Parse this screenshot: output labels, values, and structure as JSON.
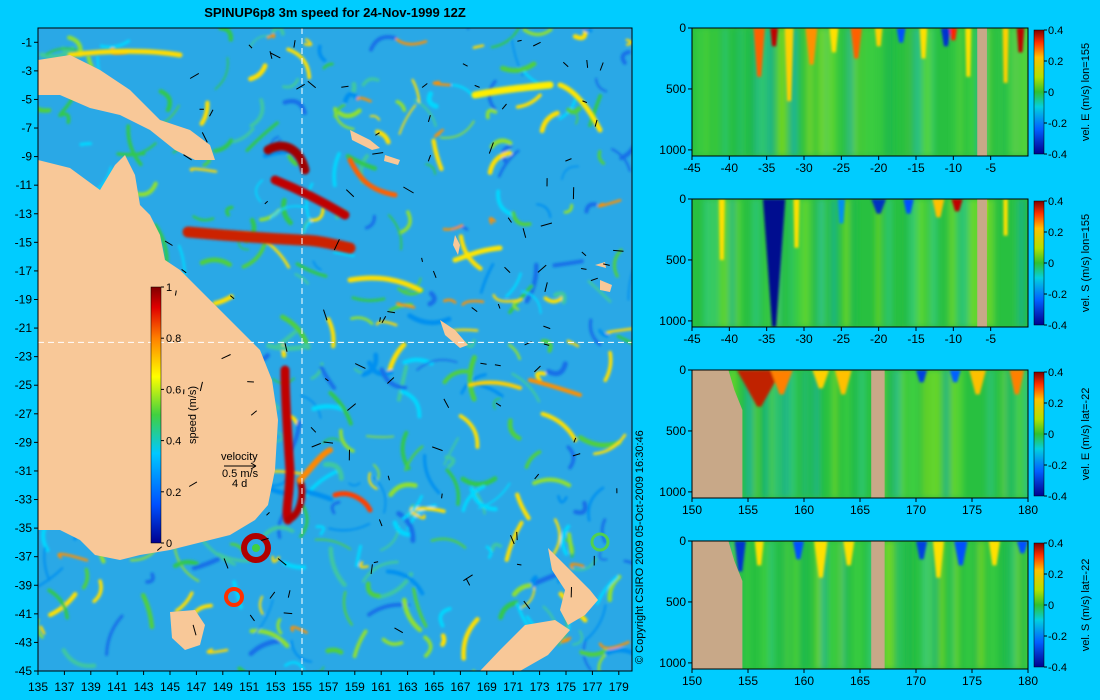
{
  "colors": {
    "background": "#00ccff",
    "land": "#f8c898",
    "section_land": "#c8a888",
    "ocean_base": "#2aa8e6"
  },
  "chart_data": [
    {
      "type": "heatmap",
      "title": "SPINUP6p8 3m speed for 24-Nov-1999 12Z",
      "x_ticks": [
        "135",
        "137",
        "139",
        "141",
        "143",
        "145",
        "147",
        "149",
        "151",
        "153",
        "155",
        "157",
        "159",
        "161",
        "163",
        "165",
        "167",
        "169",
        "171",
        "173",
        "175",
        "177",
        "179"
      ],
      "y_ticks": [
        "-1",
        "-3",
        "-5",
        "-7",
        "-9",
        "-11",
        "-13",
        "-15",
        "-17",
        "-19",
        "-21",
        "-23",
        "-25",
        "-27",
        "-29",
        "-31",
        "-33",
        "-35",
        "-37",
        "-39",
        "-41",
        "-43",
        "-45"
      ],
      "xlim": [
        135,
        180
      ],
      "ylim": [
        -45,
        0
      ],
      "crosshair": {
        "lon": 155,
        "lat": -22
      },
      "colorbar": {
        "label": "speed (m/s)",
        "ticks": [
          "1",
          "0.8",
          "0.6",
          "0.4",
          "0.2",
          "0"
        ],
        "range": [
          0,
          1
        ]
      },
      "velocity_key": {
        "line1": "velocity",
        "line2": "0.5 m/s",
        "line3": "4 d"
      },
      "copyright": "© Copyright CSIRO 2009   05-Oct-2009 16:30:46"
    },
    {
      "type": "heatmap",
      "xlim": [
        -45,
        0
      ],
      "ylim": [
        1050,
        0
      ],
      "x_ticks": [
        "-45",
        "-40",
        "-35",
        "-30",
        "-25",
        "-20",
        "-15",
        "-10",
        "-5"
      ],
      "y_ticks": [
        "0",
        "500",
        "1000"
      ],
      "colorbar": {
        "label": "vel. E (m/s) lon=155",
        "ticks": [
          "0.4",
          "0.2",
          "0",
          "-0.2",
          "-0.4"
        ],
        "range": [
          -0.4,
          0.4
        ]
      }
    },
    {
      "type": "heatmap",
      "xlim": [
        -45,
        0
      ],
      "ylim": [
        1050,
        0
      ],
      "x_ticks": [
        "-45",
        "-40",
        "-35",
        "-30",
        "-25",
        "-20",
        "-15",
        "-10",
        "-5"
      ],
      "y_ticks": [
        "0",
        "500",
        "1000"
      ],
      "colorbar": {
        "label": "vel. S (m/s) lon=155",
        "ticks": [
          "0.4",
          "0.2",
          "0",
          "-0.2",
          "-0.4"
        ],
        "range": [
          -0.4,
          0.4
        ]
      }
    },
    {
      "type": "heatmap",
      "xlim": [
        150,
        180
      ],
      "ylim": [
        1050,
        0
      ],
      "x_ticks": [
        "150",
        "155",
        "160",
        "165",
        "170",
        "175",
        "180"
      ],
      "y_ticks": [
        "0",
        "500",
        "1000"
      ],
      "colorbar": {
        "label": "vel. E (m/s) lat=-22",
        "ticks": [
          "0.4",
          "0.2",
          "0",
          "-0.2",
          "-0.4"
        ],
        "range": [
          -0.4,
          0.4
        ]
      }
    },
    {
      "type": "heatmap",
      "xlim": [
        150,
        180
      ],
      "ylim": [
        1050,
        0
      ],
      "x_ticks": [
        "150",
        "155",
        "160",
        "165",
        "170",
        "175",
        "180"
      ],
      "y_ticks": [
        "0",
        "500",
        "1000"
      ],
      "colorbar": {
        "label": "vel. S (m/s) lat=-22",
        "ticks": [
          "0.4",
          "0.2",
          "0",
          "-0.2",
          "-0.4"
        ],
        "range": [
          -0.4,
          0.4
        ]
      }
    }
  ]
}
